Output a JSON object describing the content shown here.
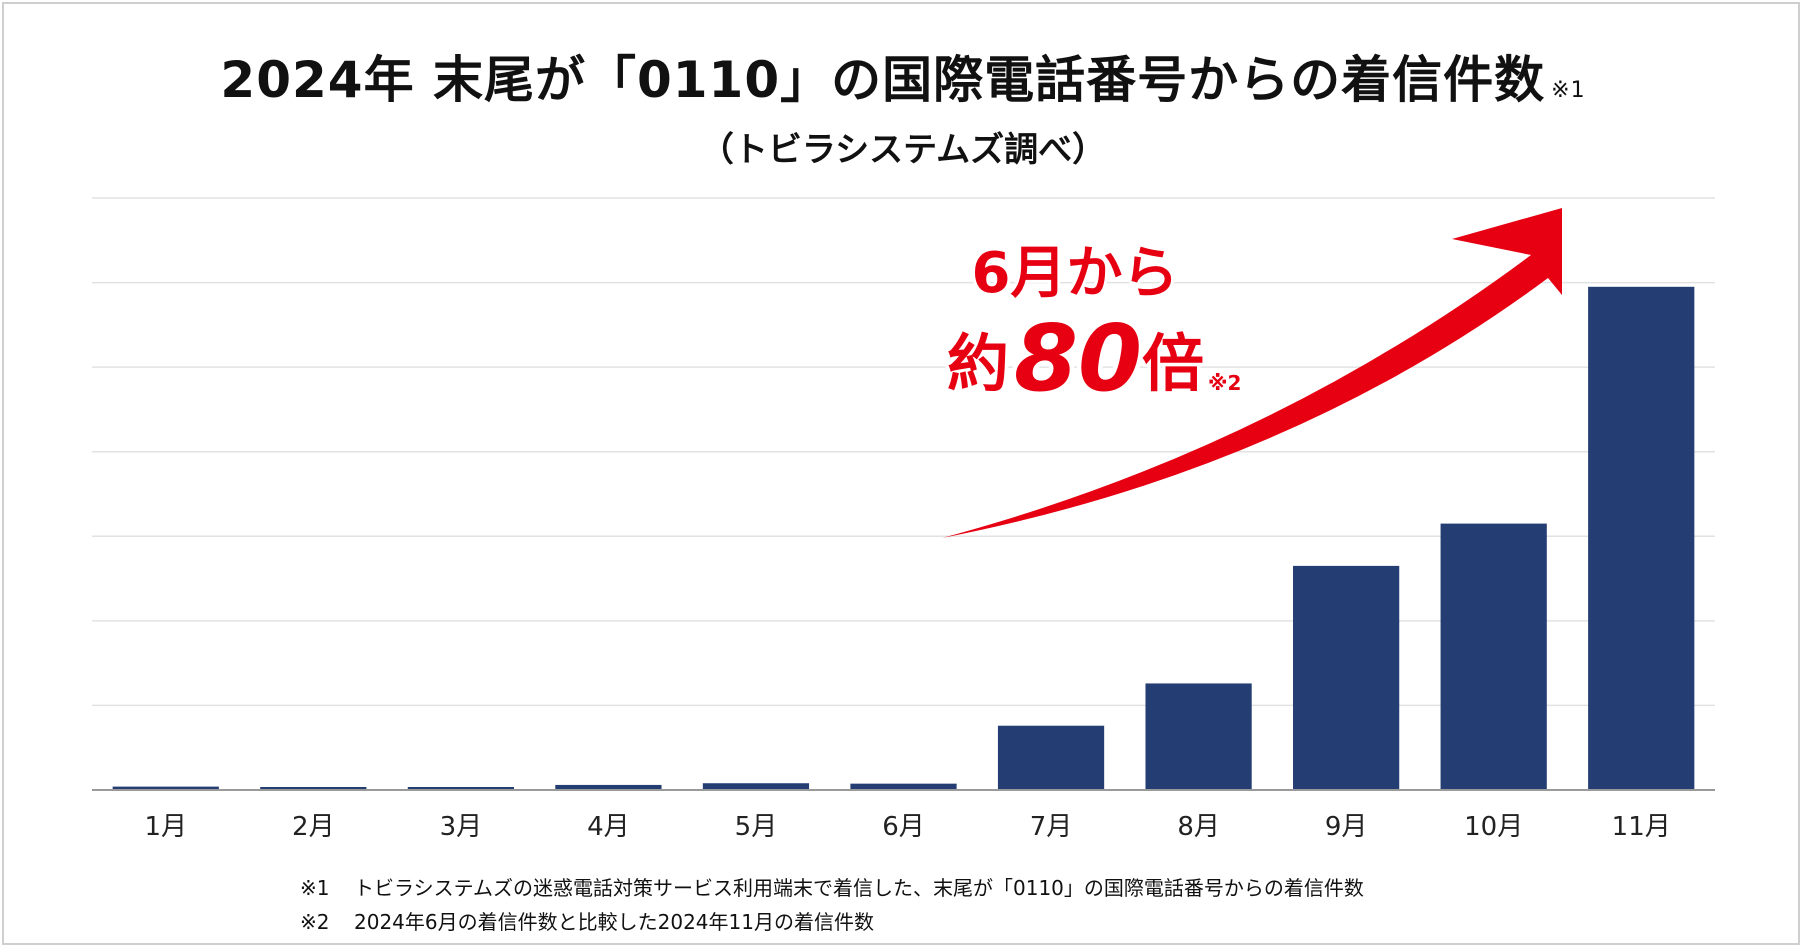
{
  "title": "2024年 末尾が「0110」の国際電話番号からの着信件数",
  "title_ref": "※1",
  "subtitle": "（トビラシステムズ調べ）",
  "callout": {
    "line1": "6月から",
    "prefix": "約",
    "number": "80",
    "suffix": "倍",
    "ref": "※2"
  },
  "footnotes": [
    {
      "mark": "※1",
      "text": "トビラシステムズの迷惑電話対策サービス利用端末で着信した、末尾が「0110」の国際電話番号からの着信件数"
    },
    {
      "mark": "※2",
      "text": "2024年6月の着信件数と比較した2024年11月の着信件数"
    }
  ],
  "chart_data": {
    "type": "bar",
    "title": "2024年 末尾が「0110」の国際電話番号からの着信件数",
    "categories": [
      "1月",
      "2月",
      "3月",
      "4月",
      "5月",
      "6月",
      "7月",
      "8月",
      "9月",
      "10月",
      "11月"
    ],
    "values": [
      0.4,
      0.3,
      0.2,
      0.6,
      0.8,
      0.75,
      7.6,
      12.6,
      26.5,
      31.5,
      59.5
    ],
    "value_unit": "relative (no axis labels shown)",
    "ylim": [
      0,
      70
    ],
    "gridlines": 7,
    "xlabel": "",
    "ylabel": "",
    "bar_color": "#243e73",
    "arrow_color": "#e60012",
    "grid_color": "#e2e2e2"
  }
}
